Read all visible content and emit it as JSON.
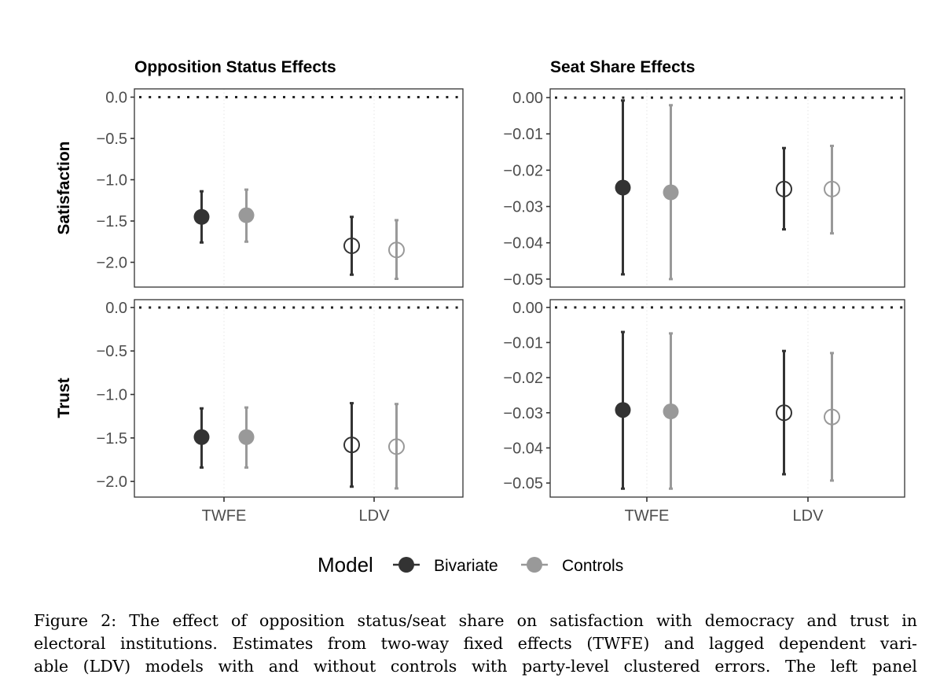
{
  "chart_data": {
    "type": "pointrange",
    "layout": "2x2 facet grid",
    "column_titles": [
      "Opposition Status Effects",
      "Seat Share Effects"
    ],
    "row_labels": [
      "Satisfaction",
      "Trust"
    ],
    "x_categories": [
      "TWFE",
      "LDV"
    ],
    "reference_line": 0,
    "legend": {
      "title": "Model",
      "position": "bottom",
      "entries": [
        {
          "name": "Bivariate",
          "color": "#333333"
        },
        {
          "name": "Controls",
          "color": "#999999"
        }
      ]
    },
    "marker_styles": {
      "TWFE": "filled-circle",
      "LDV": "open-circle"
    },
    "panels": [
      {
        "column": "Opposition Status Effects",
        "row": "Satisfaction",
        "ylim": [
          -2.3,
          0.1
        ],
        "yticks": [
          0.0,
          -0.5,
          -1.0,
          -1.5,
          -2.0
        ],
        "ytick_labels": [
          "0.0",
          "−0.5",
          "−1.0",
          "−1.5",
          "−2.0"
        ],
        "series": [
          {
            "name": "Bivariate",
            "points": [
              {
                "x": "TWFE",
                "estimate": -1.45,
                "lower": -1.76,
                "upper": -1.14
              },
              {
                "x": "LDV",
                "estimate": -1.8,
                "lower": -2.15,
                "upper": -1.45
              }
            ]
          },
          {
            "name": "Controls",
            "points": [
              {
                "x": "TWFE",
                "estimate": -1.43,
                "lower": -1.75,
                "upper": -1.12
              },
              {
                "x": "LDV",
                "estimate": -1.85,
                "lower": -2.2,
                "upper": -1.49
              }
            ]
          }
        ]
      },
      {
        "column": "Seat Share Effects",
        "row": "Satisfaction",
        "ylim": [
          -0.0522,
          0.0024
        ],
        "yticks": [
          0.0,
          -0.01,
          -0.02,
          -0.03,
          -0.04,
          -0.05
        ],
        "ytick_labels": [
          "0.00",
          "−0.01",
          "−0.02",
          "−0.03",
          "−0.04",
          "−0.05"
        ],
        "series": [
          {
            "name": "Bivariate",
            "points": [
              {
                "x": "TWFE",
                "estimate": -0.0248,
                "lower": -0.0487,
                "upper": -0.0008
              },
              {
                "x": "LDV",
                "estimate": -0.0252,
                "lower": -0.0363,
                "upper": -0.0139
              }
            ]
          },
          {
            "name": "Controls",
            "points": [
              {
                "x": "TWFE",
                "estimate": -0.0261,
                "lower": -0.05,
                "upper": -0.0021
              },
              {
                "x": "LDV",
                "estimate": -0.0252,
                "lower": -0.0374,
                "upper": -0.0133
              }
            ]
          }
        ]
      },
      {
        "column": "Opposition Status Effects",
        "row": "Trust",
        "ylim": [
          -2.18,
          0.09
        ],
        "yticks": [
          0.0,
          -0.5,
          -1.0,
          -1.5,
          -2.0
        ],
        "ytick_labels": [
          "0.0",
          "−0.5",
          "−1.0",
          "−1.5",
          "−2.0"
        ],
        "series": [
          {
            "name": "Bivariate",
            "points": [
              {
                "x": "TWFE",
                "estimate": -1.49,
                "lower": -1.84,
                "upper": -1.16
              },
              {
                "x": "LDV",
                "estimate": -1.58,
                "lower": -2.06,
                "upper": -1.1
              }
            ]
          },
          {
            "name": "Controls",
            "points": [
              {
                "x": "TWFE",
                "estimate": -1.49,
                "lower": -1.84,
                "upper": -1.15
              },
              {
                "x": "LDV",
                "estimate": -1.6,
                "lower": -2.08,
                "upper": -1.11
              }
            ]
          }
        ]
      },
      {
        "column": "Seat Share Effects",
        "row": "Trust",
        "ylim": [
          -0.054,
          0.0022
        ],
        "yticks": [
          0.0,
          -0.01,
          -0.02,
          -0.03,
          -0.04,
          -0.05
        ],
        "ytick_labels": [
          "0.00",
          "−0.01",
          "−0.02",
          "−0.03",
          "−0.04",
          "−0.05"
        ],
        "series": [
          {
            "name": "Bivariate",
            "points": [
              {
                "x": "TWFE",
                "estimate": -0.0292,
                "lower": -0.0516,
                "upper": -0.007
              },
              {
                "x": "LDV",
                "estimate": -0.03,
                "lower": -0.0475,
                "upper": -0.0124
              }
            ]
          },
          {
            "name": "Controls",
            "points": [
              {
                "x": "TWFE",
                "estimate": -0.0296,
                "lower": -0.0516,
                "upper": -0.0074
              },
              {
                "x": "LDV",
                "estimate": -0.0312,
                "lower": -0.0493,
                "upper": -0.013
              }
            ]
          }
        ]
      }
    ]
  },
  "caption": {
    "lines": [
      "Figure 2: The effect of opposition status/seat share on satisfaction with democracy and trust in",
      "electoral institutions. Estimates from two-way fixed effects (TWFE) and lagged dependent vari-",
      "able (LDV) models with and without controls with party-level clustered errors. The left panel"
    ]
  }
}
